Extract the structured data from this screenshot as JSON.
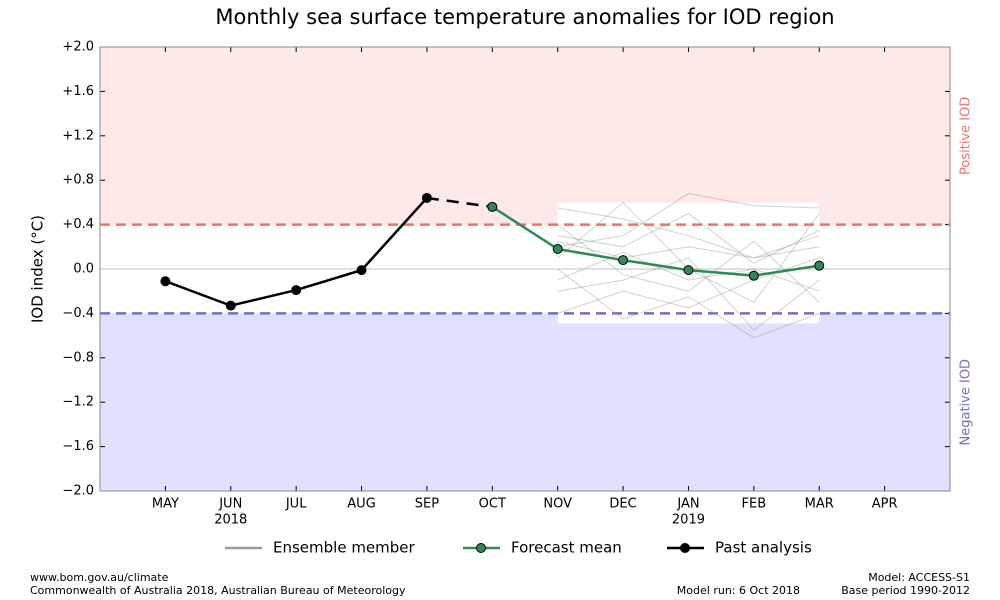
{
  "chart_data": {
    "type": "line",
    "title": "Monthly sea surface temperature anomalies for IOD region",
    "y_label": "IOD index (°C)",
    "categories": [
      "MAY",
      "JUN",
      "JUL",
      "AUG",
      "SEP",
      "OCT",
      "NOV",
      "DEC",
      "JAN",
      "FEB",
      "MAR",
      "APR"
    ],
    "year_labels": {
      "JUN": "2018",
      "JAN": "2019"
    },
    "ylim": [
      -2.0,
      2.0
    ],
    "yticks": [
      {
        "value": 2.0,
        "label": "+2.0"
      },
      {
        "value": 1.6,
        "label": "+1.6"
      },
      {
        "value": 1.2,
        "label": "+1.2"
      },
      {
        "value": 0.8,
        "label": "+0.8"
      },
      {
        "value": 0.4,
        "label": "+0.4"
      },
      {
        "value": 0.0,
        "label": "0.0"
      },
      {
        "value": -0.4,
        "label": "−0.4"
      },
      {
        "value": -0.8,
        "label": "−0.8"
      },
      {
        "value": -1.2,
        "label": "−1.2"
      },
      {
        "value": -1.6,
        "label": "−1.6"
      },
      {
        "value": -2.0,
        "label": "−2.0"
      }
    ],
    "thresholds": {
      "positive": {
        "value": 0.4,
        "label": "Positive IOD",
        "color": "#f07070",
        "fill": "#ffe8e8"
      },
      "negative": {
        "value": -0.4,
        "label": "Negative IOD",
        "color": "#7070c0",
        "fill": "#e0e0ff"
      }
    },
    "ensemble": {
      "name": "Ensemble member",
      "color": "#999999",
      "members": [
        [
          null,
          null,
          null,
          null,
          null,
          null,
          0.55,
          0.45,
          0.3,
          0.1,
          0.2,
          null
        ],
        [
          null,
          null,
          null,
          null,
          null,
          null,
          0.3,
          0.2,
          0.5,
          0.05,
          0.35,
          null
        ],
        [
          null,
          null,
          null,
          null,
          null,
          null,
          -0.2,
          -0.1,
          0.1,
          -0.55,
          -0.1,
          null
        ],
        [
          null,
          null,
          null,
          null,
          null,
          null,
          0.1,
          0.6,
          0.0,
          -0.3,
          0.5,
          null
        ],
        [
          null,
          null,
          null,
          null,
          null,
          null,
          0.4,
          -0.05,
          -0.2,
          0.25,
          -0.3,
          null
        ],
        [
          null,
          null,
          null,
          null,
          null,
          null,
          -0.4,
          -0.2,
          -0.35,
          -0.1,
          0.1,
          null
        ],
        [
          null,
          null,
          null,
          null,
          null,
          null,
          0.2,
          0.3,
          0.68,
          0.57,
          0.55,
          null
        ],
        [
          null,
          null,
          null,
          null,
          null,
          null,
          0.0,
          -0.45,
          -0.25,
          -0.62,
          -0.4,
          null
        ],
        [
          null,
          null,
          null,
          null,
          null,
          null,
          0.25,
          0.1,
          0.2,
          0.1,
          0.3,
          null
        ],
        [
          null,
          null,
          null,
          null,
          null,
          null,
          -0.1,
          0.15,
          -0.1,
          0.0,
          -0.2,
          null
        ]
      ]
    },
    "series": [
      {
        "name": "Forecast mean",
        "color": "#2e8b57",
        "values": [
          null,
          null,
          null,
          null,
          null,
          0.56,
          0.18,
          0.08,
          -0.01,
          -0.06,
          0.03,
          null
        ]
      },
      {
        "name": "Past analysis",
        "color": "#000000",
        "values": [
          -0.11,
          -0.33,
          -0.19,
          -0.01,
          0.64,
          null,
          null,
          null,
          null,
          null,
          null,
          null
        ]
      }
    ],
    "footer": {
      "left": [
        "www.bom.gov.au/climate",
        "Commonwealth of Australia 2018, Australian Bureau of Meteorology"
      ],
      "model_run": "Model run: 6 Oct 2018",
      "right": [
        "Model: ACCESS-S1",
        "Base period 1990-2012"
      ]
    }
  }
}
